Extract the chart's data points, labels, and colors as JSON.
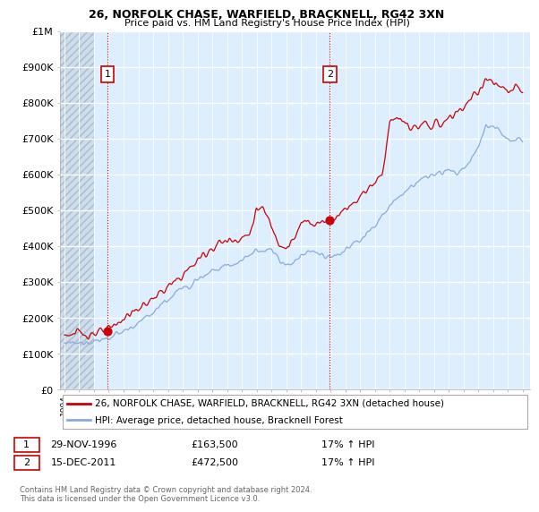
{
  "title1": "26, NORFOLK CHASE, WARFIELD, BRACKNELL, RG42 3XN",
  "title2": "Price paid vs. HM Land Registry's House Price Index (HPI)",
  "ylim": [
    0,
    1000000
  ],
  "yticks": [
    0,
    100000,
    200000,
    300000,
    400000,
    500000,
    600000,
    700000,
    800000,
    900000,
    1000000
  ],
  "ytick_labels": [
    "£0",
    "£100K",
    "£200K",
    "£300K",
    "£400K",
    "£500K",
    "£600K",
    "£700K",
    "£800K",
    "£900K",
    "£1M"
  ],
  "xlim_start": 1993.7,
  "xlim_end": 2025.5,
  "purchase1_x": 1996.91,
  "purchase1_y": 163500,
  "purchase2_x": 2011.96,
  "purchase2_y": 472500,
  "line_color_property": "#cc0000",
  "line_color_hpi": "#88aadd",
  "legend_label_property": "26, NORFOLK CHASE, WARFIELD, BRACKNELL, RG42 3XN (detached house)",
  "legend_label_hpi": "HPI: Average price, detached house, Bracknell Forest",
  "annotation1_date": "29-NOV-1996",
  "annotation1_price": "£163,500",
  "annotation1_hpi": "17% ↑ HPI",
  "annotation2_date": "15-DEC-2011",
  "annotation2_price": "£472,500",
  "annotation2_hpi": "17% ↑ HPI",
  "footer": "Contains HM Land Registry data © Crown copyright and database right 2024.\nThis data is licensed under the Open Government Licence v3.0.",
  "plot_bg_color": "#ddeeff",
  "hatch_bg_color": "#cccccc",
  "grid_color": "#ffffff"
}
